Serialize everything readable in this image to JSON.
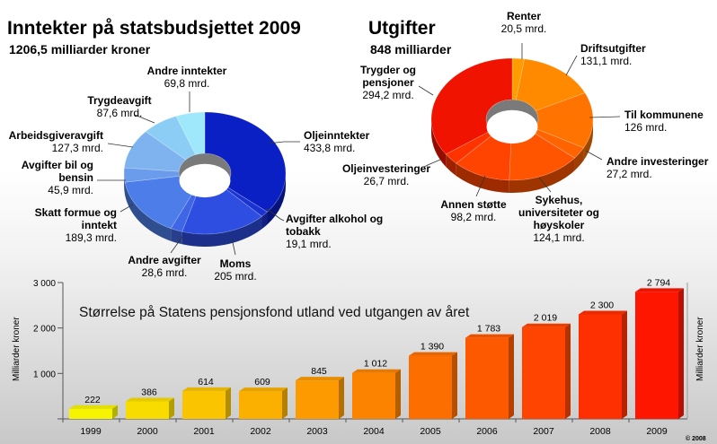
{
  "chart_data": [
    {
      "type": "pie",
      "title": "Inntekter på statsbudsjettet 2009",
      "subtitle": "1206,5 milliarder kroner",
      "slices": [
        {
          "name": "Oljeinntekter",
          "value": 433.8,
          "label": "433,8 mrd.",
          "color": "#0a1fc4"
        },
        {
          "name": "Avgifter alkohol og tobakk",
          "value": 19.1,
          "label": "19,1 mrd.",
          "color": "#1b33d0"
        },
        {
          "name": "Moms",
          "value": 205,
          "label": "205 mrd.",
          "color": "#2d4ee0"
        },
        {
          "name": "Andre avgifter",
          "value": 28.6,
          "label": "28,6 mrd.",
          "color": "#3f66e4"
        },
        {
          "name": "Skatt formue og inntekt",
          "value": 189.3,
          "label": "189,3 mrd.",
          "color": "#4c7de8"
        },
        {
          "name": "Avgifter bil og bensin",
          "value": 45.9,
          "label": "45,9 mrd.",
          "color": "#6b9cec"
        },
        {
          "name": "Arbeidsgiveravgift",
          "value": 127.3,
          "label": "127,3 mrd.",
          "color": "#7fb3f0"
        },
        {
          "name": "Trygdeavgift",
          "value": 87.6,
          "label": "87,6 mrd.",
          "color": "#8ccdf5"
        },
        {
          "name": "Andre inntekter",
          "value": 69.8,
          "label": "69,8 mrd.",
          "color": "#9fe8fb"
        }
      ]
    },
    {
      "type": "pie",
      "title": "Utgifter",
      "subtitle": "848 milliarder",
      "slices": [
        {
          "name": "Renter",
          "value": 20.5,
          "label": "20,5 mrd.",
          "color": "#ff9d00"
        },
        {
          "name": "Driftsutgifter",
          "value": 131.1,
          "label": "131,1 mrd.",
          "color": "#ff8a00"
        },
        {
          "name": "Til kommunene",
          "value": 126,
          "label": "126 mrd.",
          "color": "#ff7400"
        },
        {
          "name": "Andre investeringer",
          "value": 27.2,
          "label": "27,2 mrd.",
          "color": "#ff6400"
        },
        {
          "name": "Sykehus, universiteter og høyskoler",
          "value": 124.1,
          "label": "124,1 mrd.",
          "color": "#ff5400"
        },
        {
          "name": "Annen støtte",
          "value": 98.2,
          "label": "98,2 mrd.",
          "color": "#ff4300"
        },
        {
          "name": "Oljeinvesteringer",
          "value": 26.7,
          "label": "26,7 mrd.",
          "color": "#ff3300"
        },
        {
          "name": "Trygder og pensjoner",
          "value": 294.2,
          "label": "294,2 mrd.",
          "color": "#f01400"
        }
      ]
    },
    {
      "type": "bar",
      "title": "Størrelse på Statens pensjonsfond utland ved utgangen av året",
      "ylabel": "Milliarder kroner",
      "y2label": "Milliarder kroner",
      "ylim": [
        0,
        3000
      ],
      "yticks": [
        1000,
        2000,
        3000
      ],
      "ytick_labels": [
        "1 000",
        "2 000",
        "3 000"
      ],
      "categories": [
        "1999",
        "2000",
        "2001",
        "2002",
        "2003",
        "2004",
        "2005",
        "2006",
        "2007",
        "2008",
        "2009"
      ],
      "values": [
        222,
        386,
        614,
        609,
        845,
        1012,
        1390,
        1783,
        2019,
        2300,
        2794
      ],
      "value_labels": [
        "222",
        "386",
        "614",
        "609",
        "845",
        "1 012",
        "1 390",
        "1 783",
        "2 019",
        "2 300",
        "2 794"
      ],
      "colors": [
        "#f6f400",
        "#f8dc00",
        "#fac400",
        "#fbb000",
        "#fc9a00",
        "#fc8300",
        "#fd6e00",
        "#fd5900",
        "#fe4400",
        "#fe2f00",
        "#ff1600"
      ]
    }
  ],
  "credit": "© 2008"
}
